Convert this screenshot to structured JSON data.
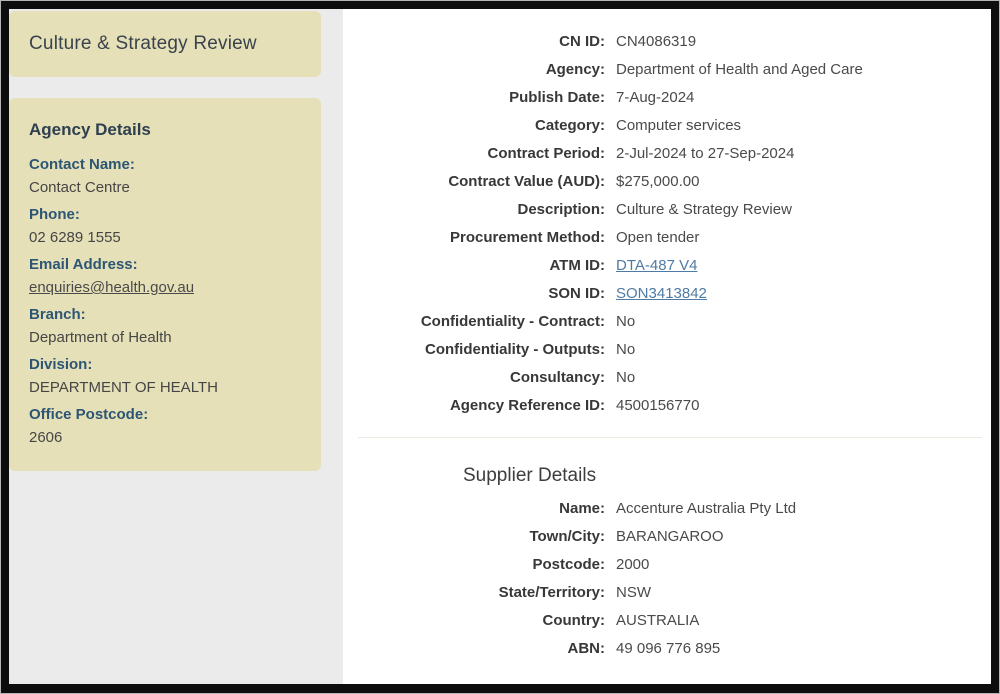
{
  "page": {
    "title": "Culture & Strategy Review"
  },
  "colors": {
    "sidebar_panel": "#e6e0b8",
    "sidebar_label": "#2c5674",
    "page_background": "#ebebeb",
    "main_link": "#4e7ba4",
    "frame_border": "#0d0d0d"
  },
  "sidebar": {
    "heading": "Agency Details",
    "fields": [
      {
        "label": "Contact Name:",
        "value": "Contact Centre",
        "link": false
      },
      {
        "label": "Phone:",
        "value": "02 6289 1555",
        "link": false
      },
      {
        "label": "Email Address:",
        "value": "enquiries@health.gov.au",
        "link": true
      },
      {
        "label": "Branch:",
        "value": "Department of Health",
        "link": false
      },
      {
        "label": "Division:",
        "value": "DEPARTMENT OF HEALTH",
        "link": false
      },
      {
        "label": "Office Postcode:",
        "value": "2606",
        "link": false
      }
    ]
  },
  "main": {
    "rows": [
      {
        "label": "CN ID:",
        "value": "CN4086319",
        "link": false
      },
      {
        "label": "Agency:",
        "value": "Department of Health and Aged Care",
        "link": false
      },
      {
        "label": "Publish Date:",
        "value": "7-Aug-2024",
        "link": false
      },
      {
        "label": "Category:",
        "value": "Computer services",
        "link": false
      },
      {
        "label": "Contract Period:",
        "value": "2-Jul-2024 to 27-Sep-2024",
        "link": false
      },
      {
        "label": "Contract Value (AUD):",
        "value": "$275,000.00",
        "link": false
      },
      {
        "label": "Description:",
        "value": "Culture & Strategy Review",
        "link": false
      },
      {
        "label": "Procurement Method:",
        "value": "Open tender",
        "link": false
      },
      {
        "label": "ATM ID:",
        "value": "DTA-487 V4",
        "link": true
      },
      {
        "label": "SON ID:",
        "value": "SON3413842",
        "link": true
      },
      {
        "label": "Confidentiality - Contract:",
        "value": "No",
        "link": false
      },
      {
        "label": "Confidentiality - Outputs:",
        "value": "No",
        "link": false
      },
      {
        "label": "Consultancy:",
        "value": "No",
        "link": false
      },
      {
        "label": "Agency Reference ID:",
        "value": "4500156770",
        "link": false
      }
    ]
  },
  "supplier": {
    "heading": "Supplier Details",
    "rows": [
      {
        "label": "Name:",
        "value": "Accenture Australia Pty Ltd",
        "link": false
      },
      {
        "label": "Town/City:",
        "value": "BARANGAROO",
        "link": false
      },
      {
        "label": "Postcode:",
        "value": "2000",
        "link": false
      },
      {
        "label": "State/Territory:",
        "value": "NSW",
        "link": false
      },
      {
        "label": "Country:",
        "value": "AUSTRALIA",
        "link": false
      },
      {
        "label": "ABN:",
        "value": "49 096 776 895",
        "link": false
      }
    ]
  }
}
